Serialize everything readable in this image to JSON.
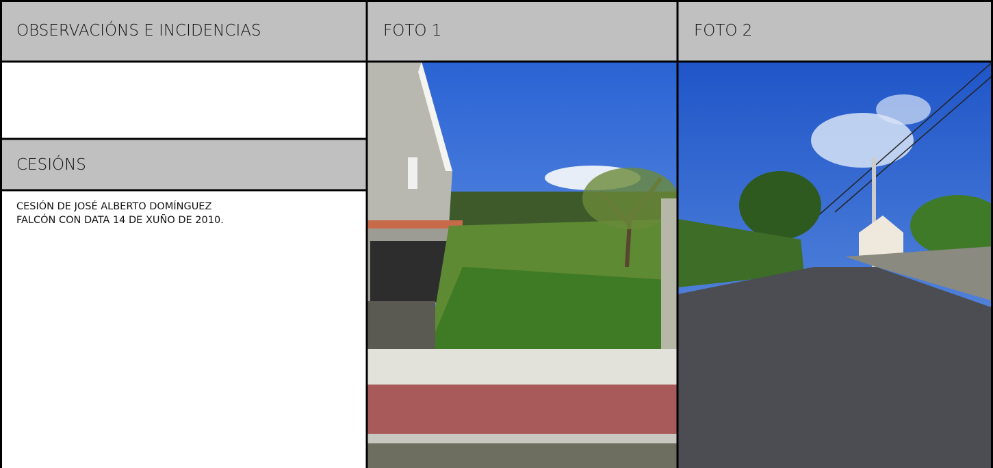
{
  "header": {
    "observations_title": "OBSERVACIÓNS E INCIDENCIAS",
    "photo1_title": "FOTO 1",
    "photo2_title": "FOTO 2"
  },
  "cessions": {
    "title": "CESIÓNS",
    "lines": [
      "CESIÓN DE JOSÉ ALBERTO DOMÍNGUEZ",
      "FALCÓN CON DATA 14 DE XUÑO DE 2010."
    ]
  }
}
